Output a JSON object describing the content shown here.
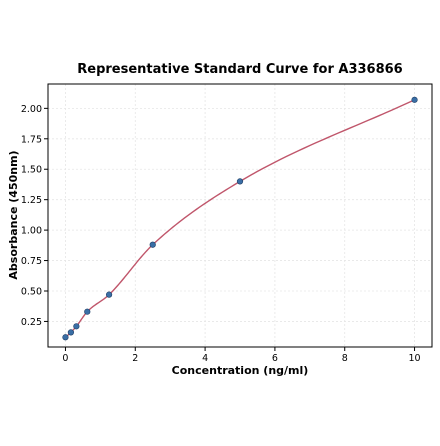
{
  "chart_data": {
    "type": "scatter",
    "title": "Representative Standard Curve for A336866",
    "xlabel": "Concentration (ng/ml)",
    "ylabel": "Absorbance (450nm)",
    "xlim": [
      -0.5,
      10.5
    ],
    "ylim": [
      0.04,
      2.2
    ],
    "xticks": [
      0,
      2,
      4,
      6,
      8,
      10
    ],
    "yticks": [
      0.25,
      0.5,
      0.75,
      1.0,
      1.25,
      1.5,
      1.75,
      2.0
    ],
    "xtick_labels": [
      "0",
      "2",
      "4",
      "6",
      "8",
      "10"
    ],
    "ytick_labels": [
      "0.25",
      "0.50",
      "0.75",
      "1.00",
      "1.25",
      "1.50",
      "1.75",
      "2.00"
    ],
    "grid": true,
    "series": [
      {
        "kind": "points",
        "x": [
          0,
          0.156,
          0.3125,
          0.625,
          1.25,
          2.5,
          5,
          10
        ],
        "y": [
          0.12,
          0.16,
          0.21,
          0.33,
          0.47,
          0.88,
          1.4,
          2.07
        ],
        "color": "#3a6ea5"
      },
      {
        "kind": "fit-line",
        "color": "#c0566b"
      }
    ]
  }
}
